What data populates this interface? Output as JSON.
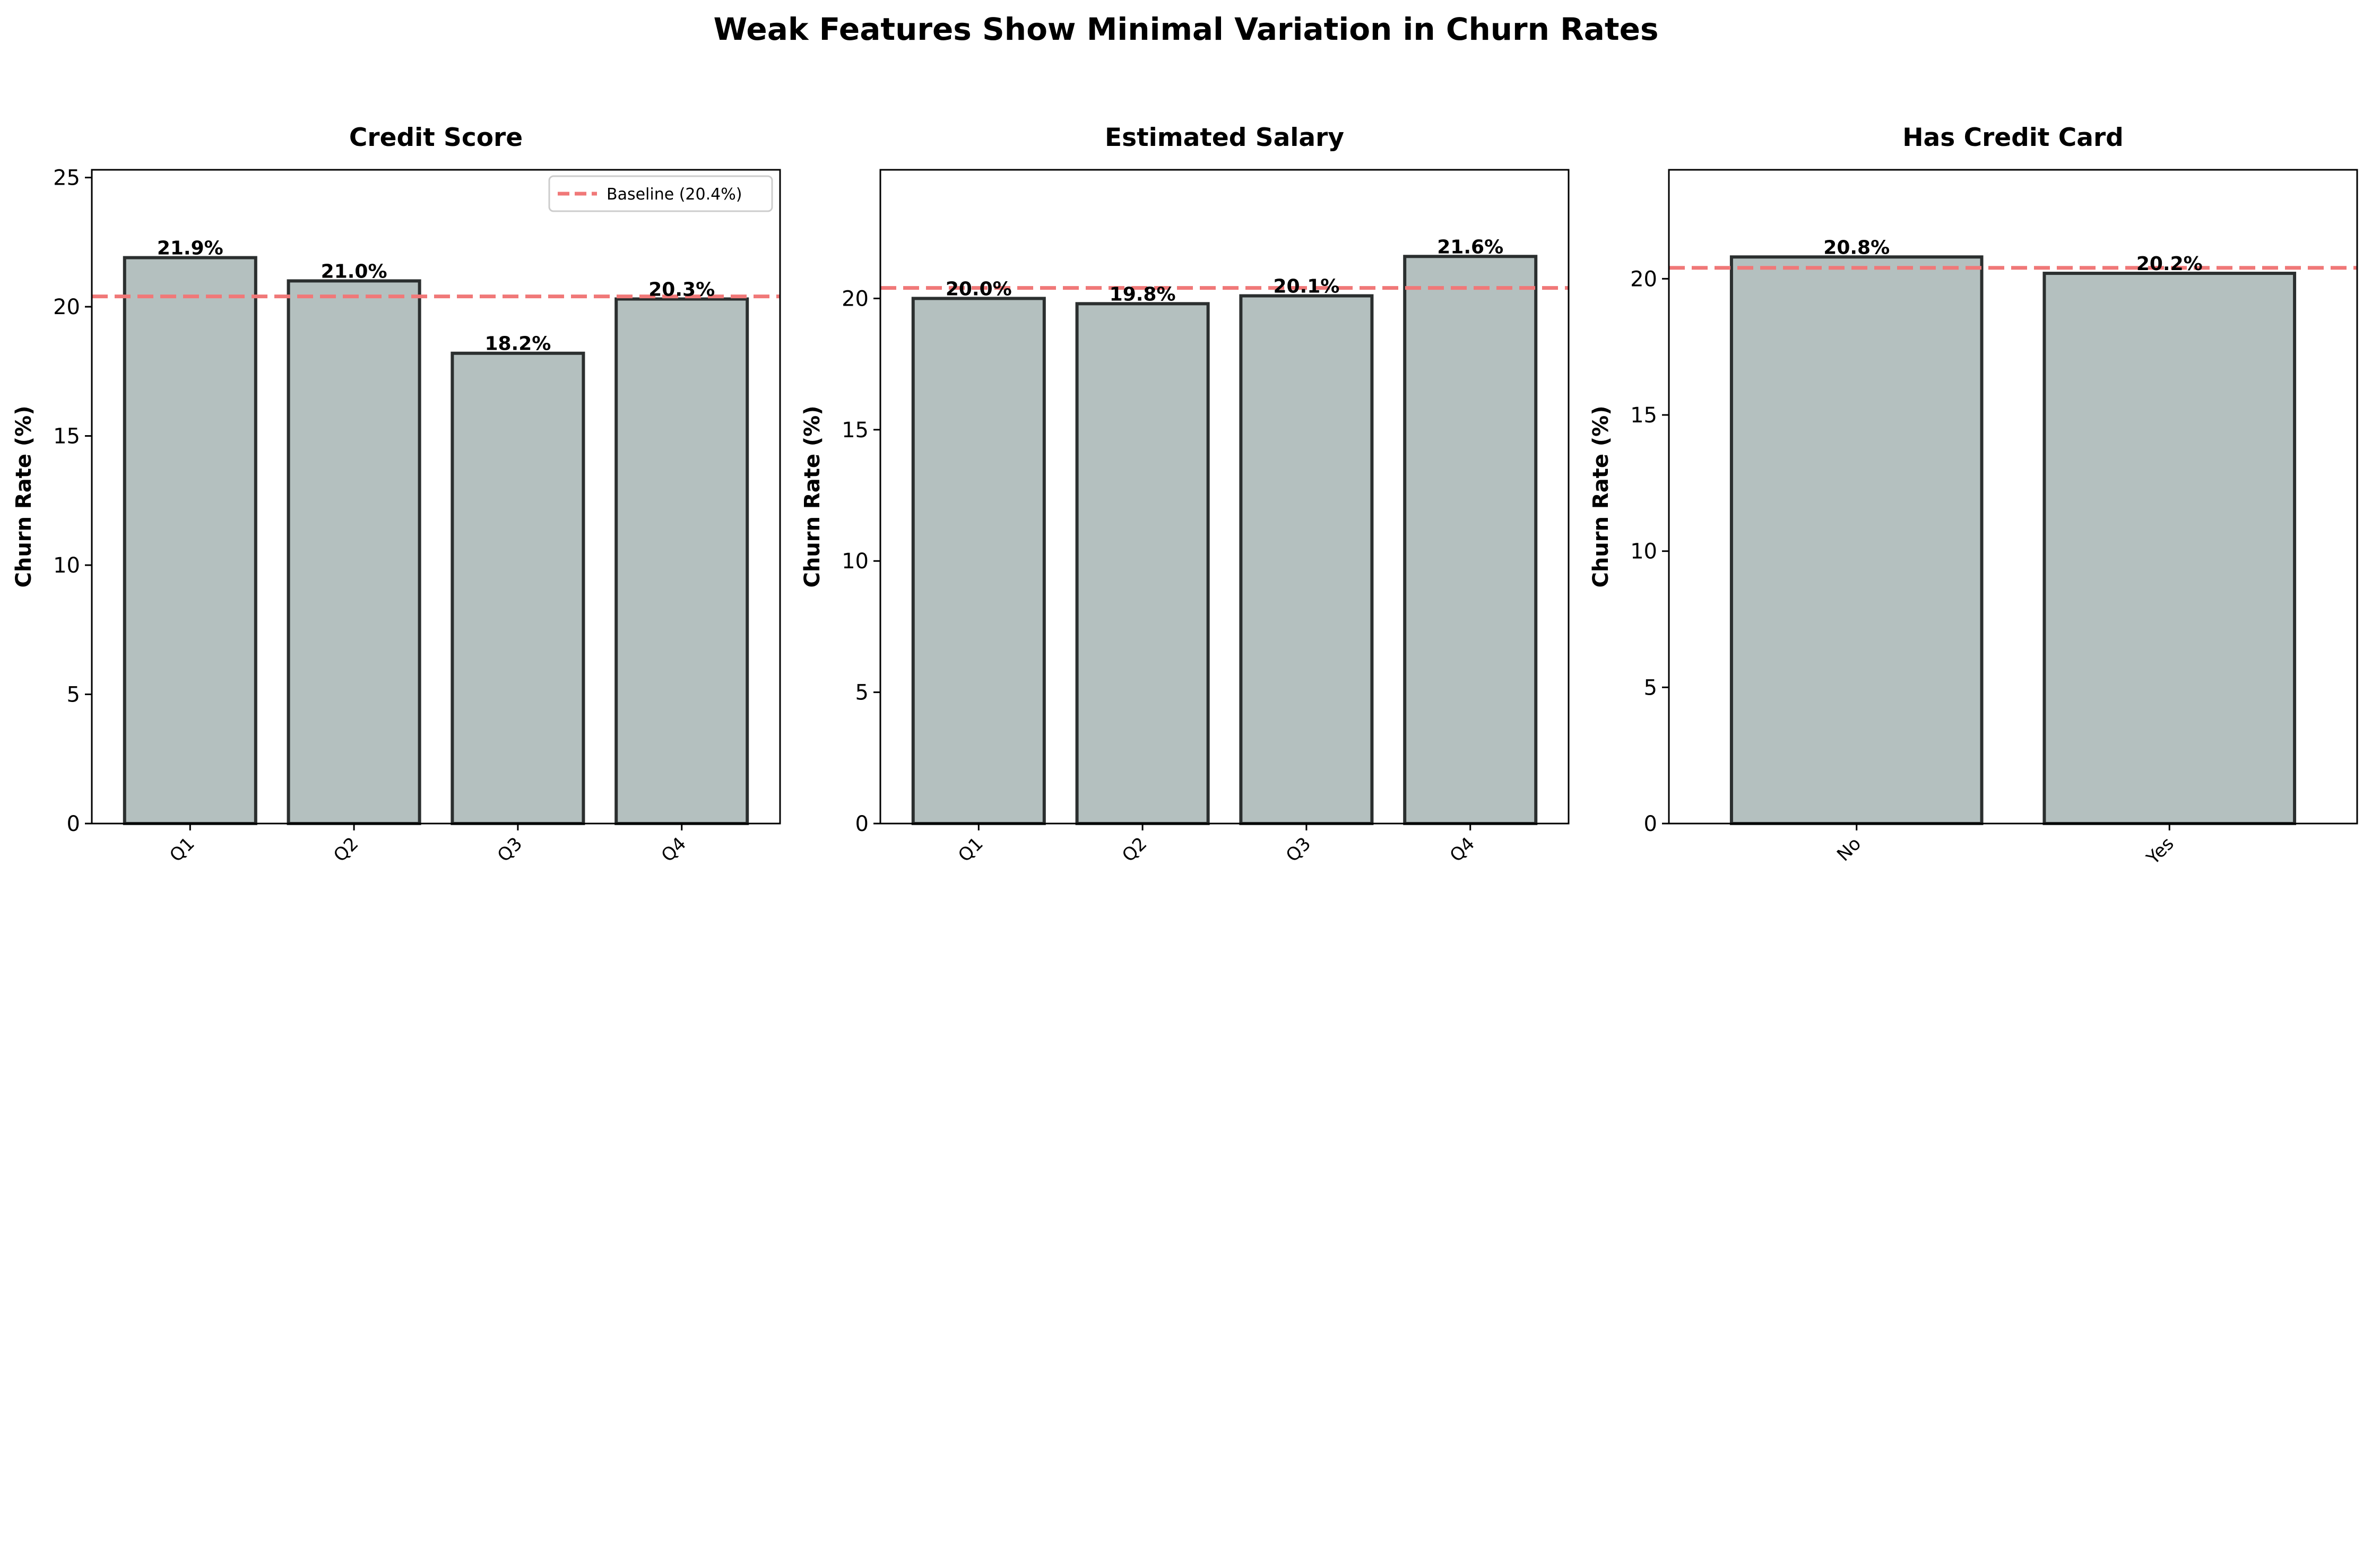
{
  "suptitle": "Weak Features Show Minimal Variation in Churn Rates",
  "colors": {
    "bar_fill": "#b4c0bf",
    "bar_edge": "#2b2f2f",
    "baseline": "#f07878"
  },
  "legend": {
    "label": "Baseline (20.4%)",
    "placement": "upper right of first panel"
  },
  "chart_data": [
    {
      "type": "bar",
      "title": "Credit Score",
      "ylabel": "Churn Rate (%)",
      "xlabel": "",
      "categories": [
        "Q1",
        "Q2",
        "Q3",
        "Q4"
      ],
      "values": [
        21.9,
        21.0,
        18.2,
        20.3
      ],
      "data_labels": [
        "21.9%",
        "21.0%",
        "18.2%",
        "20.3%"
      ],
      "baseline": 20.4,
      "ylim": [
        0,
        25.3
      ],
      "yticks": [
        0,
        5,
        10,
        15,
        20,
        25
      ],
      "grid": false,
      "show_legend": true
    },
    {
      "type": "bar",
      "title": "Estimated Salary",
      "ylabel": "Churn Rate (%)",
      "xlabel": "",
      "categories": [
        "Q1",
        "Q2",
        "Q3",
        "Q4"
      ],
      "values": [
        20.0,
        19.8,
        20.1,
        21.6
      ],
      "data_labels": [
        "20.0%",
        "19.8%",
        "20.1%",
        "21.6%"
      ],
      "baseline": 20.4,
      "ylim": [
        0,
        24.9
      ],
      "yticks": [
        0,
        5,
        10,
        15,
        20
      ],
      "grid": false,
      "show_legend": false
    },
    {
      "type": "bar",
      "title": "Has Credit Card",
      "ylabel": "Churn Rate (%)",
      "xlabel": "",
      "categories": [
        "No",
        "Yes"
      ],
      "values": [
        20.8,
        20.2
      ],
      "data_labels": [
        "20.8%",
        "20.2%"
      ],
      "baseline": 20.4,
      "ylim": [
        0,
        24.0
      ],
      "yticks": [
        0,
        5,
        10,
        15,
        20
      ],
      "grid": false,
      "show_legend": false
    }
  ]
}
